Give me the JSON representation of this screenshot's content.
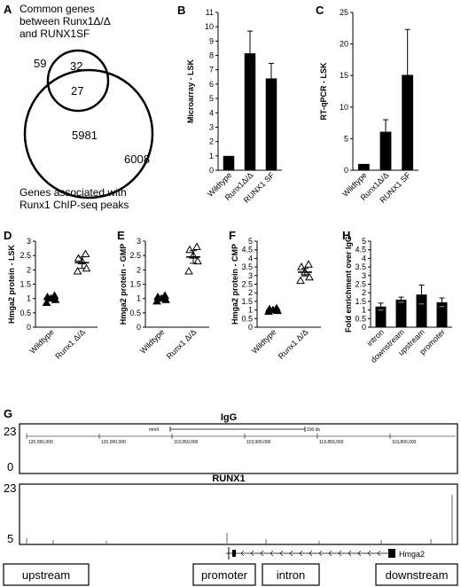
{
  "panel_letters": [
    "A",
    "B",
    "C",
    "D",
    "E",
    "F",
    "H",
    "G"
  ],
  "venn": {
    "set_a_label": [
      "Common genes",
      "between Runx1Δ/Δ",
      "and RUNX1SF"
    ],
    "set_b_label": [
      "Genes associated with",
      "Runx1 ChIP-seq peaks"
    ],
    "total_a": "59",
    "only_a": "32",
    "overlap": "27",
    "only_b": "5981",
    "total_b": "6008"
  },
  "chart_data": [
    {
      "panel": "B",
      "type": "bar",
      "categories": [
        "Wildtype",
        "Runx1Δ/Δ",
        "RUNX1 SF"
      ],
      "values": [
        1,
        8.15,
        6.4
      ],
      "errors": [
        0,
        1.55,
        1.05
      ],
      "ylabel": "Microarray - LSK",
      "ylim": [
        0,
        11
      ],
      "yticks": [
        "0",
        "1",
        "2",
        "3",
        "4",
        "5",
        "6",
        "7",
        "8",
        "9",
        "10",
        "11"
      ]
    },
    {
      "panel": "C",
      "type": "bar",
      "categories": [
        "Wildtype",
        "Runx1Δ/Δ",
        "RUNX1 SF"
      ],
      "values": [
        1,
        6.1,
        15.1
      ],
      "errors": [
        0,
        1.9,
        7.2
      ],
      "ylabel": "RT-qPCR - LSK",
      "ylim": [
        0,
        25
      ],
      "yticks": [
        "0",
        "5",
        "10",
        "15",
        "20",
        "25"
      ]
    },
    {
      "panel": "D",
      "type": "scatter",
      "categories": [
        "Wildtype",
        "Runx1 Δ/Δ"
      ],
      "points": [
        [
          0.85,
          0.95,
          1.0,
          1.05,
          1.1
        ],
        [
          1.95,
          2.05,
          2.3,
          2.4,
          2.55
        ]
      ],
      "means": [
        1.0,
        2.25
      ],
      "sems": [
        0.08,
        0.2
      ],
      "ylabel": "Hmga2 protein - LSK",
      "ylim": [
        0,
        3
      ],
      "yticks": [
        "0",
        "0.5",
        "1",
        "1.5",
        "2",
        "2.5",
        "3"
      ]
    },
    {
      "panel": "E",
      "type": "scatter",
      "categories": [
        "Wildtype",
        "Runx1 Δ/Δ"
      ],
      "points": [
        [
          0.9,
          0.95,
          1.0,
          1.05,
          1.1
        ],
        [
          1.95,
          2.3,
          2.5,
          2.7,
          2.8
        ]
      ],
      "means": [
        1.0,
        2.45
      ],
      "sems": [
        0.07,
        0.22
      ],
      "ylabel": "Hmga2 protein - GMP",
      "ylim": [
        0,
        3
      ],
      "yticks": [
        "0",
        "0.5",
        "1",
        "1.5",
        "2",
        "2.5",
        "3"
      ]
    },
    {
      "panel": "F",
      "type": "scatter",
      "categories": [
        "Wildtype",
        "Runx1 Δ/Δ"
      ],
      "points": [
        [
          0.9,
          0.95,
          1.0,
          1.05,
          1.1
        ],
        [
          2.7,
          2.9,
          3.2,
          3.5,
          3.65
        ]
      ],
      "means": [
        1.0,
        3.2
      ],
      "sems": [
        0.06,
        0.22
      ],
      "ylabel": "Hmga2 protein - CMP",
      "ylim": [
        0,
        5
      ],
      "yticks": [
        "0",
        "0.5",
        "1",
        "1.5",
        "2",
        "2.5",
        "3",
        "3.5",
        "4",
        "4.5",
        "5"
      ]
    },
    {
      "panel": "H",
      "type": "bar",
      "categories": [
        "intron",
        "downstream",
        "upstream",
        "promoter"
      ],
      "values": [
        1.2,
        1.6,
        1.9,
        1.45
      ],
      "errors": [
        0.2,
        0.15,
        0.55,
        0.25
      ],
      "ylabel": "Fold enrichment over IgG",
      "ylim": [
        0,
        5
      ],
      "yticks": [
        "0",
        "0.5",
        "1",
        "1.5",
        "2",
        "2.5",
        "3",
        "3.5",
        "4",
        "4.5",
        "5"
      ]
    }
  ],
  "tracks": {
    "igg_label": "IgG",
    "igg_ymax": "23",
    "igg_ymin": "0",
    "runx1_label": "RUNX1",
    "runx1_ymax": "23",
    "runx1_ymin": "5",
    "scale_label": "mm9",
    "scale_bar_label": "100 kb",
    "coords": [
      "120,050,000",
      "120,000,000",
      "119,950,000",
      "119,900,000",
      "119,850,000",
      "119,800,000"
    ],
    "gene_label": "Hmga2"
  },
  "regions": {
    "upstream": "upstream",
    "promoter": "promoter",
    "intron": "intron",
    "downstream": "downstream"
  }
}
